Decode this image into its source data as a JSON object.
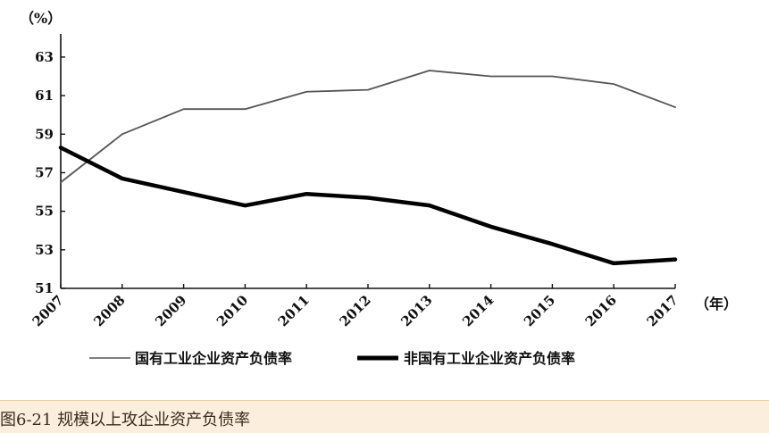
{
  "caption": "图6-21 规模以上攻企业资产负债率",
  "chart_data": {
    "type": "line",
    "categories": [
      "2007",
      "2008",
      "2009",
      "2010",
      "2011",
      "2012",
      "2013",
      "2014",
      "2015",
      "2016",
      "2017"
    ],
    "series": [
      {
        "name": "国有工业企业资产负债率",
        "values": [
          56.5,
          59.0,
          60.3,
          60.3,
          61.2,
          61.3,
          62.3,
          62.0,
          62.0,
          61.6,
          60.4
        ],
        "color": "#555555",
        "style": "thin"
      },
      {
        "name": "非国有工业企业资产负债率",
        "values": [
          58.3,
          56.7,
          56.0,
          55.3,
          55.9,
          55.7,
          55.3,
          54.2,
          53.3,
          52.3,
          52.5
        ],
        "color": "#000000",
        "style": "thick"
      }
    ],
    "yticks": [
      51,
      53,
      55,
      57,
      59,
      61,
      63
    ],
    "ylim": [
      51,
      64.2
    ],
    "ylabel": "（%）",
    "xlabel": "（年）",
    "legend_placement": "bottom",
    "grid": false
  }
}
